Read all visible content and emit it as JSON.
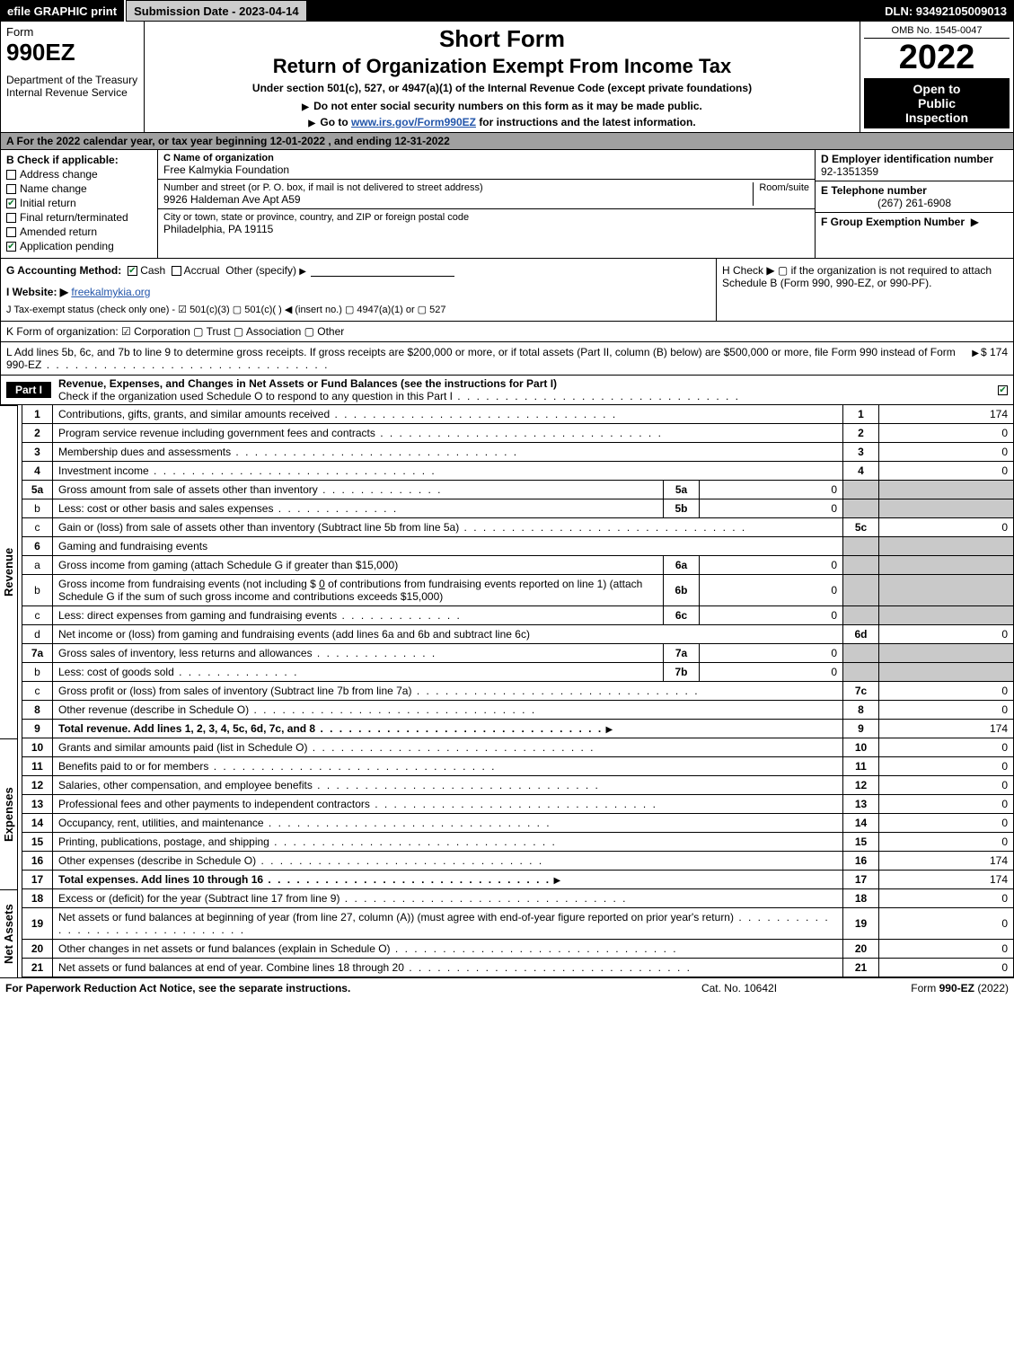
{
  "topbar": {
    "efile": "efile GRAPHIC print",
    "submission": "Submission Date - 2023-04-14",
    "dln": "DLN: 93492105009013"
  },
  "header": {
    "form_word": "Form",
    "form_num": "990EZ",
    "dept": "Department of the Treasury",
    "irs": "Internal Revenue Service",
    "short": "Short Form",
    "title": "Return of Organization Exempt From Income Tax",
    "subtitle": "Under section 501(c), 527, or 4947(a)(1) of the Internal Revenue Code (except private foundations)",
    "note": "Do not enter social security numbers on this form as it may be made public.",
    "link_pre": "Go to ",
    "link_text": "www.irs.gov/Form990EZ",
    "link_post": " for instructions and the latest information.",
    "omb": "OMB No. 1545-0047",
    "year": "2022",
    "badge1": "Open to",
    "badge2": "Public",
    "badge3": "Inspection"
  },
  "lineA": "A  For the 2022 calendar year, or tax year beginning 12-01-2022 , and ending 12-31-2022",
  "boxB": {
    "label": "B  Check if applicable:",
    "items": [
      {
        "label": "Address change",
        "checked": false
      },
      {
        "label": "Name change",
        "checked": false
      },
      {
        "label": "Initial return",
        "checked": true
      },
      {
        "label": "Final return/terminated",
        "checked": false
      },
      {
        "label": "Amended return",
        "checked": false
      },
      {
        "label": "Application pending",
        "checked": true
      }
    ]
  },
  "boxC": {
    "name_label": "C Name of organization",
    "name": "Free Kalmykia Foundation",
    "addr_label": "Number and street (or P. O. box, if mail is not delivered to street address)",
    "room_label": "Room/suite",
    "addr": "9926 Haldeman Ave Apt A59",
    "city_label": "City or town, state or province, country, and ZIP or foreign postal code",
    "city": "Philadelphia, PA  19115"
  },
  "boxD": {
    "ein_label": "D Employer identification number",
    "ein": "92-1351359",
    "tel_label": "E Telephone number",
    "tel": "(267) 261-6908",
    "group_label": "F Group Exemption Number",
    "group_arrow": "▶"
  },
  "lineG": {
    "label": "G Accounting Method:",
    "cash": "Cash",
    "accrual": "Accrual",
    "other": "Other (specify)"
  },
  "lineH": "H  Check ▶   ▢  if the organization is not required to attach Schedule B (Form 990, 990-EZ, or 990-PF).",
  "lineI": {
    "label": "I Website: ▶",
    "value": "freekalmykia.org"
  },
  "lineJ": "J Tax-exempt status (check only one) -  ☑ 501(c)(3)  ▢ 501(c)(  ) ◀ (insert no.)  ▢ 4947(a)(1) or  ▢ 527",
  "lineK": "K Form of organization:   ☑ Corporation   ▢ Trust   ▢ Association   ▢ Other",
  "lineL": {
    "text": "L Add lines 5b, 6c, and 7b to line 9 to determine gross receipts. If gross receipts are $200,000 or more, or if total assets (Part II, column (B) below) are $500,000 or more, file Form 990 instead of Form 990-EZ",
    "value": "$ 174"
  },
  "part1": {
    "label": "Part I",
    "title": "Revenue, Expenses, and Changes in Net Assets or Fund Balances (see the instructions for Part I)",
    "sub": "Check if the organization used Schedule O to respond to any question in this Part I"
  },
  "revenue_label": "Revenue",
  "expenses_label": "Expenses",
  "netassets_label": "Net Assets",
  "lines": {
    "l1": {
      "n": "1",
      "d": "Contributions, gifts, grants, and similar amounts received",
      "on": "1",
      "ov": "174"
    },
    "l2": {
      "n": "2",
      "d": "Program service revenue including government fees and contracts",
      "on": "2",
      "ov": "0"
    },
    "l3": {
      "n": "3",
      "d": "Membership dues and assessments",
      "on": "3",
      "ov": "0"
    },
    "l4": {
      "n": "4",
      "d": "Investment income",
      "on": "4",
      "ov": "0"
    },
    "l5a": {
      "n": "5a",
      "d": "Gross amount from sale of assets other than inventory",
      "in": "5a",
      "iv": "0"
    },
    "l5b": {
      "n": "b",
      "d": "Less: cost or other basis and sales expenses",
      "in": "5b",
      "iv": "0"
    },
    "l5c": {
      "n": "c",
      "d": "Gain or (loss) from sale of assets other than inventory (Subtract line 5b from line 5a)",
      "on": "5c",
      "ov": "0"
    },
    "l6": {
      "n": "6",
      "d": "Gaming and fundraising events"
    },
    "l6a": {
      "n": "a",
      "d": "Gross income from gaming (attach Schedule G if greater than $15,000)",
      "in": "6a",
      "iv": "0"
    },
    "l6b": {
      "n": "b",
      "d": "Gross income from fundraising events (not including $ ",
      "d2": " of contributions from fundraising events reported on line 1) (attach Schedule G if the sum of such gross income and contributions exceeds $15,000)",
      "amt": "0",
      "in": "6b",
      "iv": "0"
    },
    "l6c": {
      "n": "c",
      "d": "Less: direct expenses from gaming and fundraising events",
      "in": "6c",
      "iv": "0"
    },
    "l6d": {
      "n": "d",
      "d": "Net income or (loss) from gaming and fundraising events (add lines 6a and 6b and subtract line 6c)",
      "on": "6d",
      "ov": "0"
    },
    "l7a": {
      "n": "7a",
      "d": "Gross sales of inventory, less returns and allowances",
      "in": "7a",
      "iv": "0"
    },
    "l7b": {
      "n": "b",
      "d": "Less: cost of goods sold",
      "in": "7b",
      "iv": "0"
    },
    "l7c": {
      "n": "c",
      "d": "Gross profit or (loss) from sales of inventory (Subtract line 7b from line 7a)",
      "on": "7c",
      "ov": "0"
    },
    "l8": {
      "n": "8",
      "d": "Other revenue (describe in Schedule O)",
      "on": "8",
      "ov": "0"
    },
    "l9": {
      "n": "9",
      "d": "Total revenue. Add lines 1, 2, 3, 4, 5c, 6d, 7c, and 8",
      "on": "9",
      "ov": "174"
    },
    "l10": {
      "n": "10",
      "d": "Grants and similar amounts paid (list in Schedule O)",
      "on": "10",
      "ov": "0"
    },
    "l11": {
      "n": "11",
      "d": "Benefits paid to or for members",
      "on": "11",
      "ov": "0"
    },
    "l12": {
      "n": "12",
      "d": "Salaries, other compensation, and employee benefits",
      "on": "12",
      "ov": "0"
    },
    "l13": {
      "n": "13",
      "d": "Professional fees and other payments to independent contractors",
      "on": "13",
      "ov": "0"
    },
    "l14": {
      "n": "14",
      "d": "Occupancy, rent, utilities, and maintenance",
      "on": "14",
      "ov": "0"
    },
    "l15": {
      "n": "15",
      "d": "Printing, publications, postage, and shipping",
      "on": "15",
      "ov": "0"
    },
    "l16": {
      "n": "16",
      "d": "Other expenses (describe in Schedule O)",
      "on": "16",
      "ov": "174"
    },
    "l17": {
      "n": "17",
      "d": "Total expenses. Add lines 10 through 16",
      "on": "17",
      "ov": "174"
    },
    "l18": {
      "n": "18",
      "d": "Excess or (deficit) for the year (Subtract line 17 from line 9)",
      "on": "18",
      "ov": "0"
    },
    "l19": {
      "n": "19",
      "d": "Net assets or fund balances at beginning of year (from line 27, column (A)) (must agree with end-of-year figure reported on prior year's return)",
      "on": "19",
      "ov": "0"
    },
    "l20": {
      "n": "20",
      "d": "Other changes in net assets or fund balances (explain in Schedule O)",
      "on": "20",
      "ov": "0"
    },
    "l21": {
      "n": "21",
      "d": "Net assets or fund balances at end of year. Combine lines 18 through 20",
      "on": "21",
      "ov": "0"
    }
  },
  "footer": {
    "left": "For Paperwork Reduction Act Notice, see the separate instructions.",
    "mid": "Cat. No. 10642I",
    "right_pre": "Form ",
    "right_form": "990-EZ",
    "right_post": " (2022)"
  },
  "colors": {
    "topbar_bg": "#000000",
    "grey_bg": "#a0a0a0",
    "cell_grey": "#c9c9c9",
    "check_green": "#0a7a2a",
    "link": "#2255aa"
  }
}
